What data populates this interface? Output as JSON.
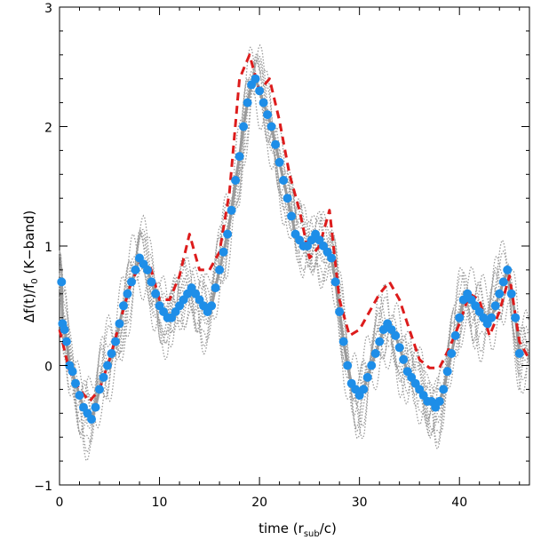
{
  "chart_data": {
    "type": "line",
    "title": "",
    "xlabel": {
      "main": "time (r",
      "sub": "sub",
      "tail": "/c)"
    },
    "ylabel": {
      "main": "Δf(t)/f",
      "sub": "0",
      "tail": " (K−band)"
    },
    "xlim": [
      0,
      47
    ],
    "ylim": [
      -1,
      3
    ],
    "x_ticks": [
      0,
      10,
      20,
      30,
      40
    ],
    "x_tick_labels": [
      "0",
      "10",
      "20",
      "30",
      "40"
    ],
    "y_ticks": [
      -1,
      0,
      1,
      2,
      3
    ],
    "y_tick_labels": [
      "−1",
      "0",
      "1",
      "2",
      "3"
    ],
    "grid": false,
    "colors": {
      "gray": "#9a9a9a",
      "red": "#dd1c1c",
      "blue": "#1e8ee8"
    },
    "series": [
      {
        "name": "model (dashed)",
        "style": "dashed",
        "color": "#dd1c1c",
        "x": [
          0,
          1,
          2,
          3,
          4,
          5,
          6,
          7,
          8,
          9,
          10,
          11,
          12,
          13,
          14,
          15,
          16,
          17,
          18,
          19,
          20,
          21,
          22,
          23,
          24,
          25,
          26,
          27,
          28,
          29,
          30,
          31,
          32,
          33,
          34,
          35,
          36,
          37,
          38,
          39,
          40,
          41,
          42,
          43,
          44,
          45,
          46,
          47
        ],
        "y": [
          0.3,
          -0.05,
          -0.2,
          -0.3,
          -0.2,
          0.05,
          0.35,
          0.65,
          0.85,
          0.85,
          0.55,
          0.55,
          0.75,
          1.1,
          0.8,
          0.8,
          0.95,
          1.45,
          2.4,
          2.6,
          2.3,
          2.4,
          2.05,
          1.6,
          1.3,
          0.9,
          1.0,
          1.3,
          0.55,
          0.25,
          0.3,
          0.45,
          0.6,
          0.7,
          0.55,
          0.3,
          0.05,
          -0.02,
          -0.02,
          0.15,
          0.35,
          0.6,
          0.55,
          0.25,
          0.45,
          0.75,
          0.2,
          0.05
        ]
      },
      {
        "name": "observations",
        "style": "markers",
        "color": "#1e8ee8",
        "x": [
          0.2,
          0.3,
          0.5,
          0.7,
          1.0,
          1.3,
          1.6,
          2.0,
          2.4,
          2.8,
          3.2,
          3.6,
          4.0,
          4.4,
          4.8,
          5.2,
          5.6,
          6.0,
          6.4,
          6.8,
          7.2,
          7.6,
          8.0,
          8.4,
          8.8,
          9.2,
          9.6,
          10.0,
          10.4,
          10.8,
          11.2,
          11.6,
          12.0,
          12.4,
          12.8,
          13.2,
          13.6,
          14.0,
          14.4,
          14.8,
          15.2,
          15.6,
          16.0,
          16.4,
          16.8,
          17.2,
          17.6,
          18.0,
          18.4,
          18.8,
          19.2,
          19.6,
          20.0,
          20.4,
          20.8,
          21.2,
          21.6,
          22.0,
          22.4,
          22.8,
          23.2,
          23.6,
          24.0,
          24.4,
          24.8,
          25.2,
          25.6,
          26.0,
          26.4,
          26.8,
          27.2,
          27.6,
          28.0,
          28.4,
          28.8,
          29.2,
          29.6,
          30.0,
          30.4,
          30.8,
          31.2,
          31.6,
          32.0,
          32.4,
          32.8,
          33.2,
          33.6,
          34.0,
          34.4,
          34.8,
          35.2,
          35.6,
          36.0,
          36.4,
          36.8,
          37.2,
          37.6,
          38.0,
          38.4,
          38.8,
          39.2,
          39.6,
          40.0,
          40.4,
          40.8,
          41.2,
          41.6,
          42.0,
          42.4,
          42.8,
          43.2,
          43.6,
          44.0,
          44.4,
          44.8,
          45.2,
          45.6,
          46.0
        ],
        "y": [
          0.7,
          0.35,
          0.3,
          0.2,
          0.0,
          -0.05,
          -0.15,
          -0.25,
          -0.35,
          -0.4,
          -0.45,
          -0.35,
          -0.2,
          -0.1,
          0.0,
          0.1,
          0.2,
          0.35,
          0.5,
          0.6,
          0.7,
          0.8,
          0.9,
          0.85,
          0.8,
          0.7,
          0.6,
          0.5,
          0.45,
          0.4,
          0.4,
          0.45,
          0.5,
          0.55,
          0.6,
          0.65,
          0.6,
          0.55,
          0.5,
          0.45,
          0.5,
          0.65,
          0.8,
          0.95,
          1.1,
          1.3,
          1.55,
          1.75,
          2.0,
          2.2,
          2.35,
          2.4,
          2.3,
          2.2,
          2.1,
          2.0,
          1.85,
          1.7,
          1.55,
          1.4,
          1.25,
          1.1,
          1.05,
          1.0,
          1.0,
          1.05,
          1.1,
          1.05,
          1.0,
          0.95,
          0.9,
          0.7,
          0.45,
          0.2,
          0.0,
          -0.15,
          -0.2,
          -0.25,
          -0.2,
          -0.1,
          0.0,
          0.1,
          0.2,
          0.3,
          0.35,
          0.3,
          0.25,
          0.15,
          0.05,
          -0.05,
          -0.1,
          -0.15,
          -0.2,
          -0.25,
          -0.3,
          -0.3,
          -0.35,
          -0.3,
          -0.2,
          -0.05,
          0.1,
          0.25,
          0.4,
          0.55,
          0.6,
          0.55,
          0.5,
          0.45,
          0.4,
          0.35,
          0.4,
          0.5,
          0.6,
          0.7,
          0.8,
          0.6,
          0.4,
          0.1
        ]
      }
    ],
    "ensemble": {
      "name": "model ensemble (dotted)",
      "style": "dotted",
      "color": "#9a9a9a",
      "count": 10
    }
  }
}
